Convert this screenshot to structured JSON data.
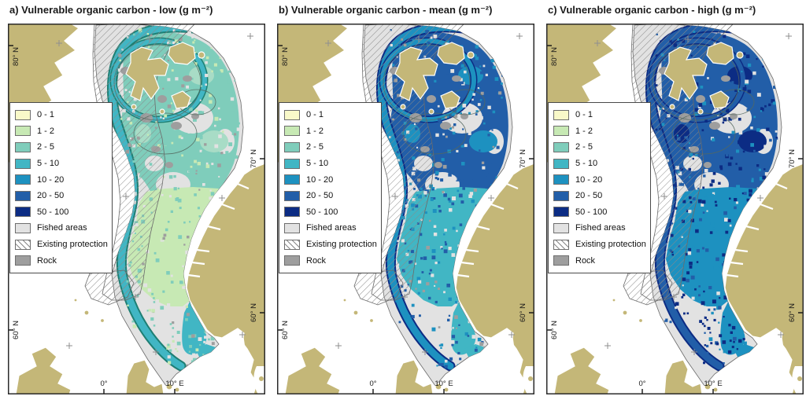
{
  "figure": {
    "background": "#ffffff"
  },
  "panels": [
    {
      "id": "a",
      "title": "a) Vulnerable organic carbon - low (g m⁻²)",
      "style": {
        "band": "#41b6c4",
        "band_edge": "#1e7f74",
        "ring": "#41b6c4",
        "north": "#7fcdbb",
        "accent": "#a8dcc6",
        "mid": "#c7e9b4",
        "south": "#41b6c4",
        "spots": "#f7f7c2",
        "speckles": [
          "#7fcdbb",
          "#c7e9b4",
          "#e2e2e2",
          "#9e9e9e"
        ]
      }
    },
    {
      "id": "b",
      "title": "b) Vulnerable organic carbon - mean (g m⁻²)",
      "style": {
        "band": "#1d91c0",
        "band_edge": "#0c2c84",
        "ring": "#225ea8",
        "north": "#225ea8",
        "accent": "#1d91c0",
        "mid": "#41b6c4",
        "south": "#41b6c4",
        "spots": null,
        "speckles": [
          "#225ea8",
          "#1d91c0",
          "#e2e2e2",
          "#9e9e9e"
        ]
      }
    },
    {
      "id": "c",
      "title": "c) Vulnerable organic carbon - high (g m⁻²)",
      "style": {
        "band": "#225ea8",
        "band_edge": "#0c2c84",
        "ring": "#0c2c84",
        "north": "#225ea8",
        "accent": "#0c2c84",
        "mid": "#1d91c0",
        "south": "#1d91c0",
        "spots": "#0c2c84",
        "speckles": [
          "#0c2c84",
          "#225ea8",
          "#1d91c0",
          "#e2e2e2"
        ]
      }
    }
  ],
  "legend": {
    "classes": [
      {
        "label": "0 - 1",
        "color": "#f9f9c9"
      },
      {
        "label": "1 - 2",
        "color": "#c7e9b4"
      },
      {
        "label": "2 - 5",
        "color": "#7fcdbb"
      },
      {
        "label": "5 - 10",
        "color": "#41b6c4"
      },
      {
        "label": "10 - 20",
        "color": "#1d91c0"
      },
      {
        "label": "20 - 50",
        "color": "#225ea8"
      },
      {
        "label": "50 - 100",
        "color": "#0c2c84"
      }
    ],
    "overlays": [
      {
        "label": "Fished areas",
        "type": "fill",
        "color": "#e2e2e2"
      },
      {
        "label": "Existing protection",
        "type": "hatch",
        "color": "#8a8a8a"
      },
      {
        "label": "Rock",
        "type": "fill",
        "color": "#9e9e9e"
      }
    ]
  },
  "axis_labels": {
    "lat_80": "80° N",
    "lat_70": "70° N",
    "lat_60": "60° N",
    "lon_0": "0°",
    "lon_10e": "10° E"
  },
  "map_colors": {
    "land": "#c4b778",
    "ocean": "#ffffff",
    "fished": "#e2e2e2",
    "rock": "#9e9e9e",
    "frame": "#2b2b2b",
    "graticule": "#8f8f8f",
    "hatch_line": "#8a8a8a",
    "boundary": "#6a6a6a",
    "contour": "#55695f",
    "label_text": "#1a1a1a"
  }
}
